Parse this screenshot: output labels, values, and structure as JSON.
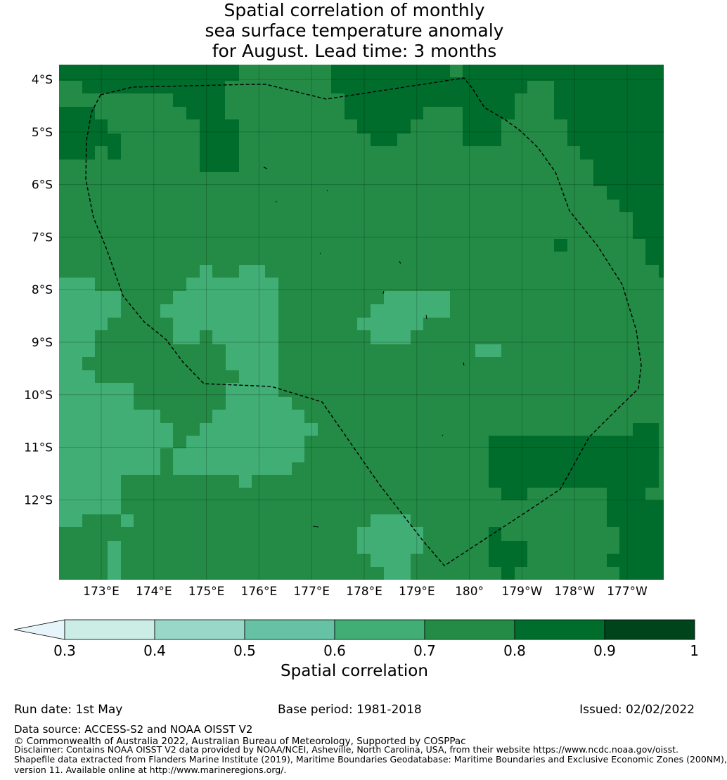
{
  "title": {
    "line1": "Spatial correlation of monthly",
    "line2": "sea surface temperature anomaly",
    "line3": "for August. Lead time: 3 months"
  },
  "map": {
    "lat_labels": [
      "4°S",
      "5°S",
      "6°S",
      "7°S",
      "8°S",
      "9°S",
      "10°S",
      "11°S",
      "12°S"
    ],
    "lon_labels": [
      "173°E",
      "174°E",
      "175°E",
      "176°E",
      "177°E",
      "178°E",
      "179°E",
      "180°",
      "179°W",
      "178°W",
      "177°W"
    ],
    "base_class": 0.7,
    "regions": [
      {
        "value": 0.8,
        "name": "top-left-high-corr"
      },
      {
        "value": 0.8,
        "name": "top-center-high-corr"
      },
      {
        "value": 0.8,
        "name": "east-high-corr"
      },
      {
        "value": 0.8,
        "name": "southeast-high-corr"
      },
      {
        "value": 0.6,
        "name": "west-moderate-corr"
      },
      {
        "value": 0.6,
        "name": "central-moderate-corr"
      },
      {
        "value": 0.6,
        "name": "south-moderate-corr"
      }
    ],
    "eez_boundary": "dashed"
  },
  "colorbar": {
    "ticks": [
      "0.3",
      "0.4",
      "0.5",
      "0.6",
      "0.7",
      "0.8",
      "0.9",
      "1"
    ],
    "colors": [
      "#ccece6",
      "#99d8c9",
      "#66c2a4",
      "#41ae76",
      "#238b45",
      "#006d2c",
      "#00441b"
    ],
    "extend_color": "#e5f5f9",
    "label": "Spatial correlation"
  },
  "footer": {
    "run_date": "Run date: 1st May",
    "base_period": "Base period: 1981-2018",
    "issued": "Issued: 02/02/2022",
    "data_source": "Data source: ACCESS-S2 and NOAA OISST V2",
    "copyright": "© Commonwealth of Australia 2022, Australian Bureau of Meteorology, Supported by COSPPac",
    "disclaimer1": "Disclaimer: Contains NOAA OISST V2 data provided by NOAA/NCEI, Asheville, North Carolina, USA, from their website https://www.ncdc.noaa.gov/oisst.",
    "disclaimer2": "Shapefile data extracted from Flanders Marine Institute (2019), Maritime Boundaries Geodatabase: Maritime Boundaries and Exclusive Economic Zones (200NM),",
    "disclaimer3": "version 11. Available online at http://www.marineregions.org/."
  }
}
